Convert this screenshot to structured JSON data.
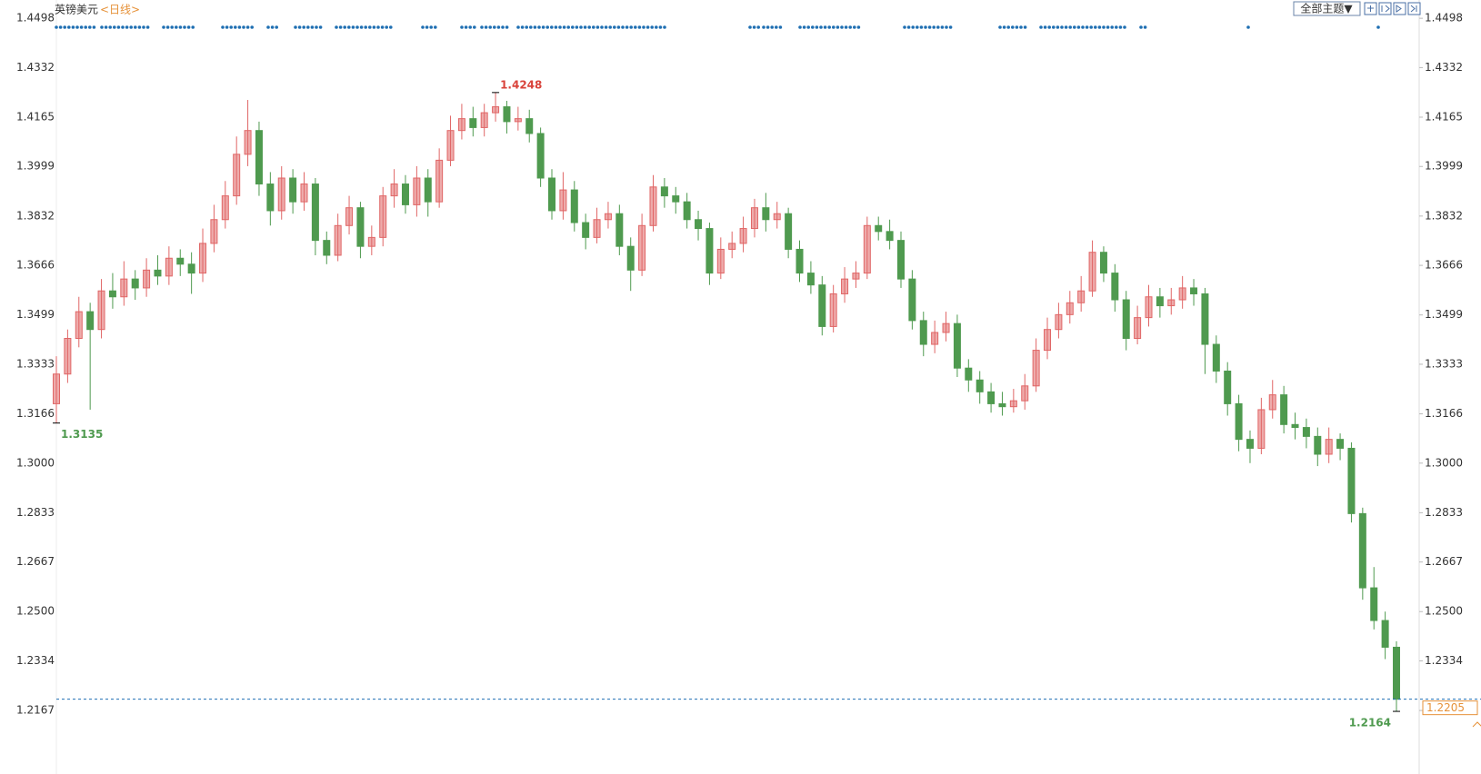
{
  "chart_data": {
    "type": "candlestick",
    "title": "英镑美元",
    "subtitle": "<日线>",
    "button": "全部主题▼",
    "up_color": "#e06666",
    "down_color": "#4f9a4f",
    "grid": false,
    "ylim": [
      1.2051,
      1.4529
    ],
    "yticks": [
      1.4498,
      1.4332,
      1.4165,
      1.3999,
      1.3832,
      1.3666,
      1.3499,
      1.3333,
      1.3166,
      {
        "value": 1.3,
        "label": "1.3000"
      },
      1.2833,
      1.2667,
      {
        "value": 1.25,
        "label": "1.2500"
      },
      1.2334,
      1.2167
    ],
    "open": [
      1.32,
      1.33,
      1.342,
      1.351,
      1.345,
      1.358,
      1.356,
      1.362,
      1.359,
      1.365,
      1.363,
      1.369,
      1.367,
      1.364,
      1.374,
      1.382,
      1.39,
      1.404,
      1.412,
      1.394,
      1.385,
      1.396,
      1.388,
      1.394,
      1.375,
      1.37,
      1.38,
      1.386,
      1.373,
      1.376,
      1.39,
      1.394,
      1.387,
      1.396,
      1.388,
      1.402,
      1.412,
      1.416,
      1.413,
      1.418,
      1.42,
      1.415,
      1.416,
      1.411,
      1.396,
      1.385,
      1.392,
      1.381,
      1.376,
      1.382,
      1.384,
      1.373,
      1.365,
      1.38,
      1.393,
      1.39,
      1.388,
      1.382,
      1.379,
      1.364,
      1.372,
      1.374,
      1.379,
      1.386,
      1.382,
      1.384,
      1.372,
      1.364,
      1.36,
      1.346,
      1.357,
      1.362,
      1.364,
      1.38,
      1.378,
      1.375,
      1.362,
      1.348,
      1.34,
      1.344,
      1.347,
      1.332,
      1.328,
      1.324,
      1.32,
      1.319,
      1.321,
      1.326,
      1.338,
      1.345,
      1.35,
      1.354,
      1.358,
      1.371,
      1.364,
      1.355,
      1.342,
      1.349,
      1.356,
      1.353,
      1.355,
      1.359,
      1.357,
      1.34,
      1.331,
      1.32,
      1.308,
      1.305,
      1.318,
      1.323,
      1.313,
      1.312,
      1.309,
      1.303,
      1.308,
      1.305,
      1.283,
      1.258,
      1.247,
      1.238
    ],
    "high": [
      1.336,
      1.345,
      1.356,
      1.354,
      1.362,
      1.364,
      1.368,
      1.365,
      1.369,
      1.37,
      1.373,
      1.372,
      1.371,
      1.379,
      1.387,
      1.395,
      1.41,
      1.4223,
      1.415,
      1.398,
      1.4,
      1.399,
      1.398,
      1.396,
      1.378,
      1.384,
      1.39,
      1.388,
      1.38,
      1.393,
      1.399,
      1.397,
      1.4,
      1.399,
      1.406,
      1.417,
      1.421,
      1.42,
      1.421,
      1.4248,
      1.422,
      1.42,
      1.419,
      1.413,
      1.399,
      1.398,
      1.395,
      1.384,
      1.386,
      1.388,
      1.387,
      1.376,
      1.384,
      1.397,
      1.396,
      1.393,
      1.391,
      1.385,
      1.381,
      1.376,
      1.378,
      1.383,
      1.389,
      1.391,
      1.388,
      1.386,
      1.375,
      1.368,
      1.363,
      1.36,
      1.366,
      1.368,
      1.383,
      1.383,
      1.382,
      1.378,
      1.365,
      1.351,
      1.348,
      1.351,
      1.35,
      1.335,
      1.331,
      1.327,
      1.324,
      1.325,
      1.33,
      1.342,
      1.349,
      1.354,
      1.358,
      1.363,
      1.375,
      1.373,
      1.367,
      1.358,
      1.353,
      1.36,
      1.359,
      1.359,
      1.363,
      1.362,
      1.359,
      1.343,
      1.334,
      1.323,
      1.311,
      1.322,
      1.328,
      1.326,
      1.317,
      1.315,
      1.312,
      1.312,
      1.31,
      1.307,
      1.285,
      1.265,
      1.25,
      1.24
    ],
    "low": [
      1.3135,
      1.327,
      1.339,
      1.318,
      1.342,
      1.352,
      1.353,
      1.355,
      1.356,
      1.36,
      1.36,
      1.363,
      1.357,
      1.361,
      1.371,
      1.379,
      1.387,
      1.4,
      1.39,
      1.38,
      1.382,
      1.384,
      1.385,
      1.37,
      1.367,
      1.368,
      1.377,
      1.369,
      1.37,
      1.373,
      1.386,
      1.384,
      1.383,
      1.383,
      1.386,
      1.4,
      1.409,
      1.41,
      1.41,
      1.415,
      1.411,
      1.412,
      1.408,
      1.393,
      1.382,
      1.382,
      1.378,
      1.372,
      1.374,
      1.379,
      1.37,
      1.358,
      1.363,
      1.378,
      1.386,
      1.384,
      1.379,
      1.375,
      1.36,
      1.362,
      1.369,
      1.371,
      1.376,
      1.378,
      1.379,
      1.369,
      1.361,
      1.357,
      1.343,
      1.344,
      1.354,
      1.359,
      1.362,
      1.375,
      1.372,
      1.359,
      1.345,
      1.336,
      1.337,
      1.341,
      1.329,
      1.324,
      1.32,
      1.317,
      1.316,
      1.317,
      1.318,
      1.324,
      1.335,
      1.342,
      1.347,
      1.351,
      1.356,
      1.361,
      1.351,
      1.338,
      1.34,
      1.346,
      1.349,
      1.35,
      1.352,
      1.353,
      1.33,
      1.327,
      1.316,
      1.304,
      1.3,
      1.303,
      1.315,
      1.31,
      1.308,
      1.305,
      1.299,
      1.3,
      1.301,
      1.28,
      1.254,
      1.244,
      1.234,
      1.2164
    ],
    "close": [
      1.33,
      1.342,
      1.351,
      1.345,
      1.358,
      1.356,
      1.362,
      1.359,
      1.365,
      1.363,
      1.369,
      1.367,
      1.364,
      1.374,
      1.382,
      1.39,
      1.404,
      1.412,
      1.394,
      1.385,
      1.396,
      1.388,
      1.394,
      1.375,
      1.37,
      1.38,
      1.386,
      1.373,
      1.376,
      1.39,
      1.394,
      1.387,
      1.396,
      1.388,
      1.402,
      1.412,
      1.416,
      1.413,
      1.418,
      1.42,
      1.415,
      1.416,
      1.411,
      1.396,
      1.385,
      1.392,
      1.381,
      1.376,
      1.382,
      1.384,
      1.373,
      1.365,
      1.38,
      1.393,
      1.39,
      1.388,
      1.382,
      1.379,
      1.364,
      1.372,
      1.374,
      1.379,
      1.386,
      1.382,
      1.384,
      1.372,
      1.364,
      1.36,
      1.346,
      1.357,
      1.362,
      1.364,
      1.38,
      1.378,
      1.375,
      1.362,
      1.348,
      1.34,
      1.344,
      1.347,
      1.332,
      1.328,
      1.324,
      1.32,
      1.319,
      1.321,
      1.326,
      1.338,
      1.345,
      1.35,
      1.354,
      1.358,
      1.371,
      1.364,
      1.355,
      1.342,
      1.349,
      1.356,
      1.353,
      1.355,
      1.359,
      1.357,
      1.34,
      1.331,
      1.32,
      1.308,
      1.305,
      1.318,
      1.323,
      1.313,
      1.312,
      1.309,
      1.303,
      1.308,
      1.305,
      1.283,
      1.258,
      1.247,
      1.238,
      1.2205
    ],
    "high_label": 1.4248,
    "low_labels": [
      1.3135,
      1.2164
    ],
    "last_price": 1.2205
  }
}
